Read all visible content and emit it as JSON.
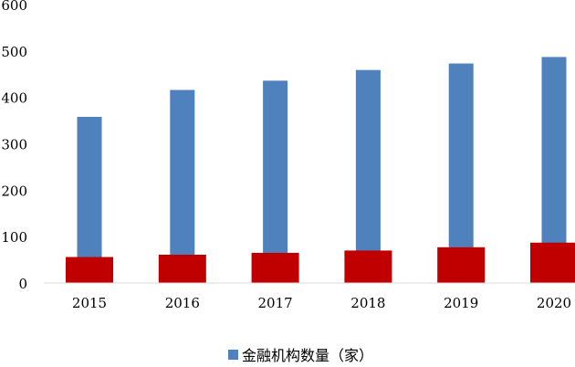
{
  "chart_data": {
    "type": "bar",
    "categories": [
      "2015",
      "2016",
      "2017",
      "2018",
      "2019",
      "2020"
    ],
    "series": [
      {
        "name": "金融机构数量（家）",
        "values": [
          358,
          416,
          436,
          459,
          473,
          487
        ],
        "color": "#4f81bd"
      },
      {
        "name": "",
        "values": [
          56,
          61,
          65,
          70,
          77,
          87
        ],
        "color": "#c00000"
      }
    ],
    "ylim": [
      0,
      600
    ],
    "yticks": [
      0,
      100,
      200,
      300,
      400,
      500,
      600
    ],
    "grid": false,
    "legend_position": "bottom-center"
  }
}
